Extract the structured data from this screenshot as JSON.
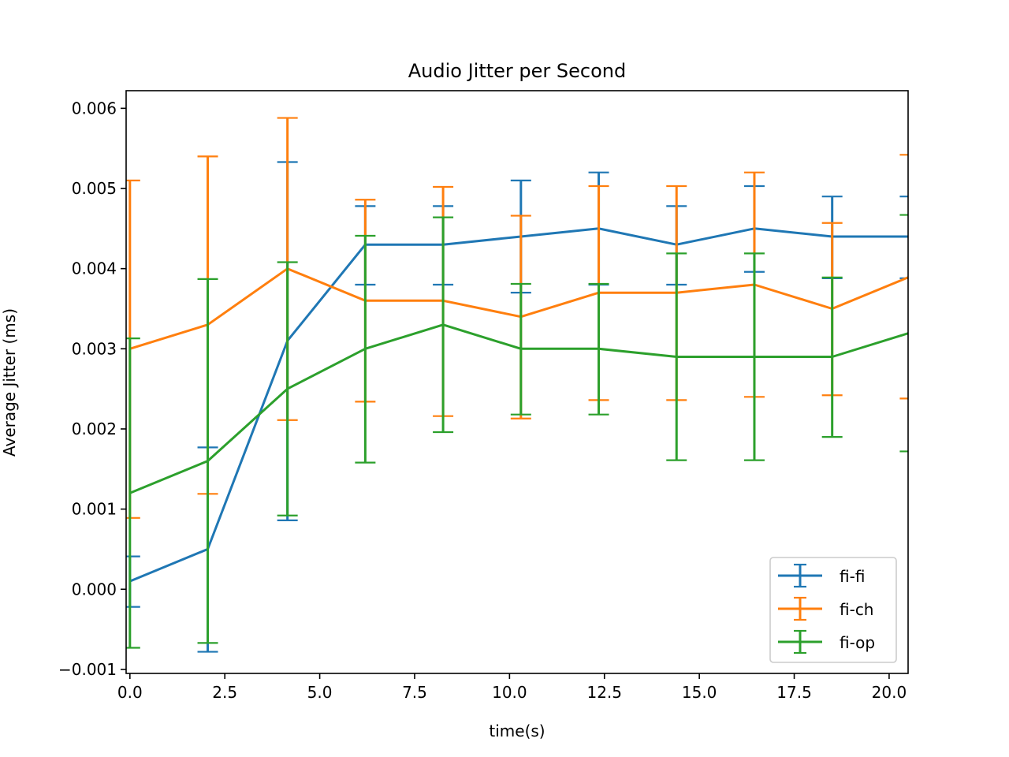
{
  "chart_data": {
    "type": "line",
    "title": "Audio Jitter per Second",
    "xlabel": "time(s)",
    "ylabel": "Average Jitter (ms)",
    "xlim": [
      -0.1,
      20.5
    ],
    "ylim": [
      -0.00105,
      0.00622
    ],
    "xticks": [
      0.0,
      2.5,
      5.0,
      7.5,
      10.0,
      12.5,
      15.0,
      17.5,
      20.0
    ],
    "xtick_labels": [
      "0.0",
      "2.5",
      "5.0",
      "7.5",
      "10.0",
      "12.5",
      "15.0",
      "17.5",
      "20.0"
    ],
    "yticks": [
      -0.001,
      0.0,
      0.001,
      0.002,
      0.003,
      0.004,
      0.005,
      0.006
    ],
    "ytick_labels": [
      "−0.001",
      "0.000",
      "0.001",
      "0.002",
      "0.003",
      "0.004",
      "0.005",
      "0.006"
    ],
    "grid": false,
    "legend_position": "lower-right",
    "error_bars": true,
    "x": [
      0.0,
      2.05,
      4.15,
      6.2,
      8.25,
      10.3,
      12.35,
      14.4,
      16.45,
      18.5,
      20.55
    ],
    "series": [
      {
        "name": "fi-fi",
        "color": "#1f77b4",
        "values": [
          0.0001,
          0.0005,
          0.0031,
          0.0043,
          0.0043,
          0.0044,
          0.0045,
          0.0043,
          0.0045,
          0.0044,
          0.0044
        ],
        "err_low": [
          -0.00022,
          -0.00078,
          0.00086,
          0.0038,
          0.0038,
          0.0037,
          0.0038,
          0.0038,
          0.00396,
          0.00388,
          0.00388
        ],
        "err_high": [
          0.00041,
          0.00177,
          0.00533,
          0.00478,
          0.00478,
          0.0051,
          0.0052,
          0.00478,
          0.00503,
          0.0049,
          0.0049
        ]
      },
      {
        "name": "fi-ch",
        "color": "#ff7f0e",
        "values": [
          0.003,
          0.0033,
          0.004,
          0.0036,
          0.0036,
          0.0034,
          0.0037,
          0.0037,
          0.0038,
          0.0035,
          0.0039
        ],
        "err_low": [
          0.00089,
          0.00119,
          0.00211,
          0.00234,
          0.00216,
          0.00213,
          0.00236,
          0.00236,
          0.0024,
          0.00242,
          0.00238
        ],
        "err_high": [
          0.0051,
          0.0054,
          0.00588,
          0.00486,
          0.00502,
          0.00466,
          0.00503,
          0.00503,
          0.0052,
          0.00457,
          0.00542
        ]
      },
      {
        "name": "fi-op",
        "color": "#2ca02c",
        "values": [
          0.0012,
          0.0016,
          0.0025,
          0.003,
          0.0033,
          0.003,
          0.003,
          0.0029,
          0.0029,
          0.0029,
          0.0032
        ],
        "err_low": [
          -0.00073,
          -0.00067,
          0.00092,
          0.00158,
          0.00196,
          0.00218,
          0.00218,
          0.00161,
          0.00161,
          0.0019,
          0.00172
        ],
        "err_high": [
          0.00313,
          0.00387,
          0.00408,
          0.00441,
          0.00464,
          0.00381,
          0.00381,
          0.00419,
          0.00419,
          0.00389,
          0.00467
        ]
      }
    ]
  }
}
